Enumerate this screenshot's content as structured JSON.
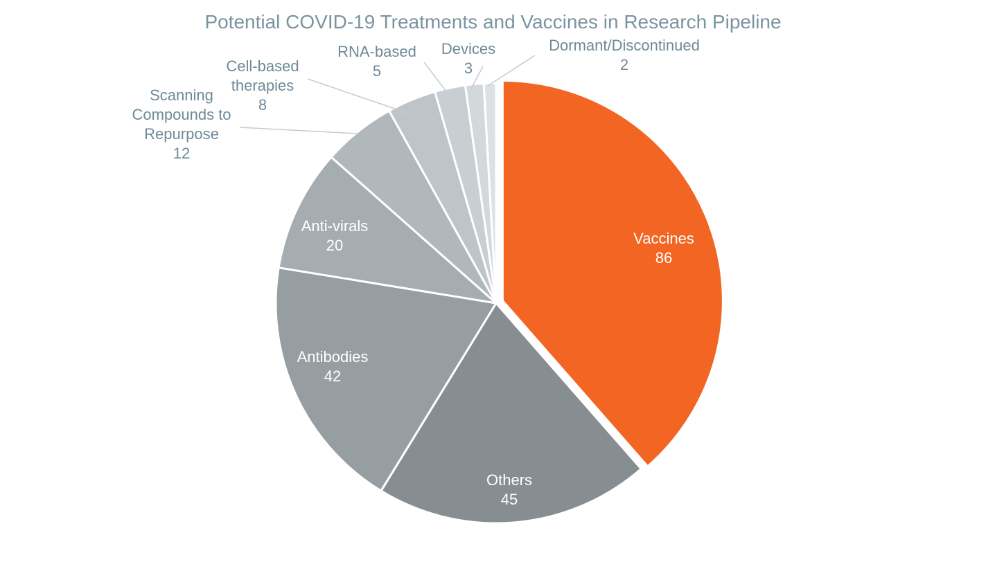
{
  "chart_data": {
    "type": "pie",
    "title": "Potential COVID-19 Treatments and Vaccines in Research Pipeline",
    "slices": [
      {
        "label": "Vaccines",
        "value": 86,
        "color": "#f26522"
      },
      {
        "label": "Others",
        "value": 45,
        "color": "#878e92"
      },
      {
        "label": "Antibodies",
        "value": 42,
        "color": "#979ea2"
      },
      {
        "label": "Anti-virals",
        "value": 20,
        "color": "#a5adb1"
      },
      {
        "label": "Scanning Compounds to Repurpose",
        "value": 12,
        "color": "#b1b8bc"
      },
      {
        "label": "Cell-based therapies",
        "value": 8,
        "color": "#bec4c8"
      },
      {
        "label": "RNA-based",
        "value": 5,
        "color": "#c9ced2"
      },
      {
        "label": "Devices",
        "value": 3,
        "color": "#d3d8db"
      },
      {
        "label": "Dormant/Discontinued",
        "value": 2,
        "color": "#dde1e3"
      }
    ],
    "exploded": [
      "Vaccines"
    ],
    "legend": "none",
    "data_labels": "category and value"
  }
}
